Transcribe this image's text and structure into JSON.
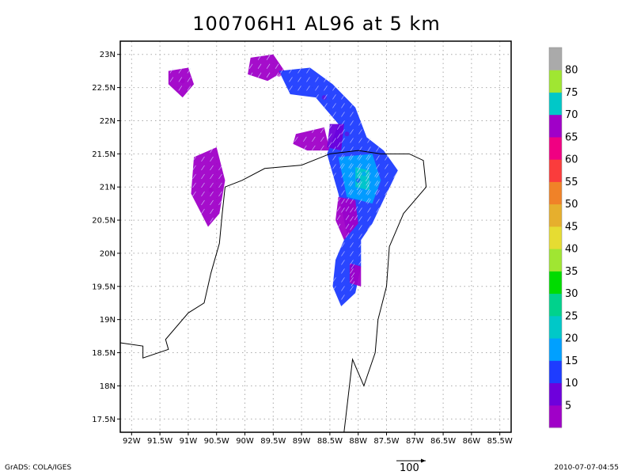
{
  "title": "100706H1 AL96 at 5 km",
  "footer": {
    "left": "GrADS: COLA/IGES",
    "right": "2010-07-07-04:55"
  },
  "reference_vector": {
    "label": "100"
  },
  "axes": {
    "lon_labels": [
      "92W",
      "91.5W",
      "91W",
      "90.5W",
      "90W",
      "89.5W",
      "89W",
      "88.5W",
      "88W",
      "87.5W",
      "87W",
      "86.5W",
      "86W",
      "85.5W"
    ],
    "lat_labels": [
      "23N",
      "22.5N",
      "22N",
      "21.5N",
      "21N",
      "20.5N",
      "20N",
      "19.5N",
      "19N",
      "18.5N",
      "18N",
      "17.5N"
    ],
    "lon_range": [
      -92.2,
      -85.3
    ],
    "lat_range": [
      17.3,
      23.2
    ]
  },
  "colorbar": {
    "labels": [
      "5",
      "10",
      "15",
      "20",
      "25",
      "30",
      "35",
      "40",
      "45",
      "50",
      "55",
      "60",
      "65",
      "70",
      "75",
      "80"
    ],
    "colors": [
      "#a000c8",
      "#6e00dc",
      "#1e3cff",
      "#00a0ff",
      "#00c8c8",
      "#00d28c",
      "#00dc00",
      "#a0e632",
      "#e6dc32",
      "#e6af2d",
      "#f08228",
      "#fa3c3c",
      "#f00082",
      "#a000c8",
      "#00c8c8",
      "#a0e632",
      "#aaaaaa"
    ]
  },
  "chart_data": {
    "type": "heatmap",
    "title": "100706H1 AL96 at 5 km",
    "xlabel": "",
    "ylabel": "",
    "xlim": [
      -92.2,
      -85.3
    ],
    "ylim": [
      17.3,
      23.2
    ],
    "grid": true,
    "legend": "right colorbar",
    "field_regions": [
      {
        "lon": -90.6,
        "lat": 20.95,
        "value": 5
      },
      {
        "lon": -88.0,
        "lat": 21.1,
        "value": 15
      },
      {
        "lon": -87.9,
        "lat": 21.2,
        "value": 20
      },
      {
        "lon": -88.15,
        "lat": 20.5,
        "value": 5
      },
      {
        "lon": -88.1,
        "lat": 19.8,
        "value": 10
      },
      {
        "lon": -88.2,
        "lat": 21.8,
        "value": 10
      },
      {
        "lon": -88.6,
        "lat": 22.35,
        "value": 10
      },
      {
        "lon": -89.4,
        "lat": 22.7,
        "value": 5
      },
      {
        "lon": -91.1,
        "lat": 22.6,
        "value": 5
      }
    ]
  }
}
